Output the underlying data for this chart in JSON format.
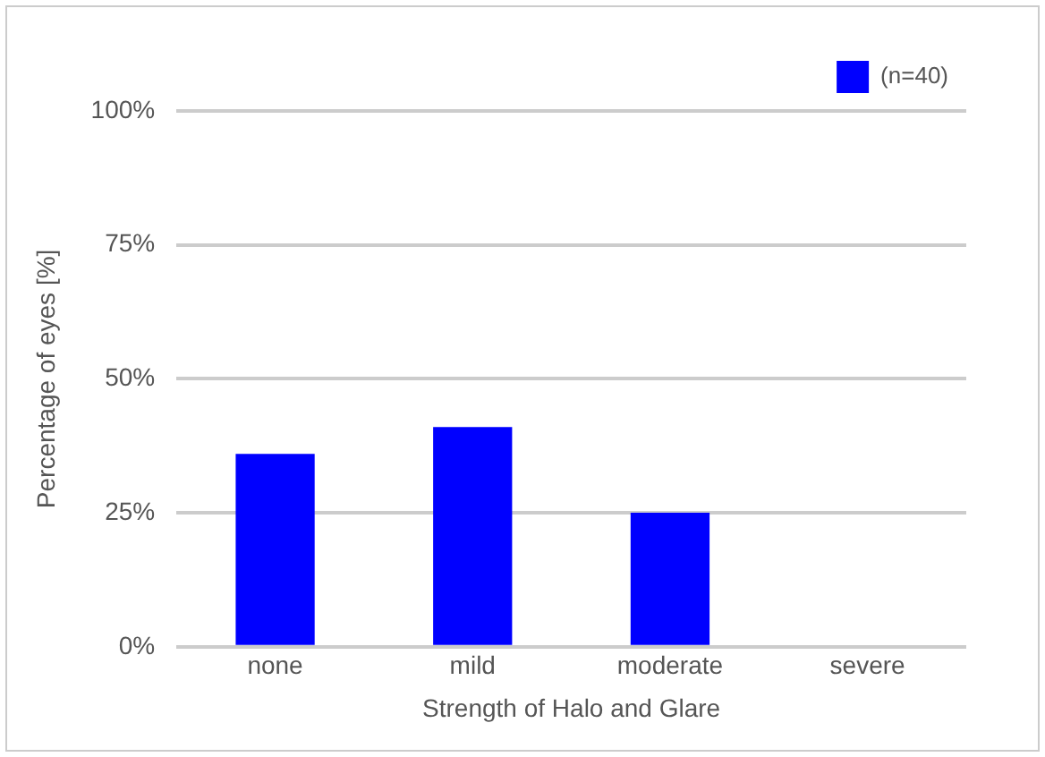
{
  "chart_data": {
    "type": "bar",
    "xlabel": "Strength of Halo and Glare",
    "ylabel": "Percentage of eyes [%]",
    "categories": [
      "none",
      "mild",
      "moderate",
      "severe"
    ],
    "series": [
      {
        "name": "(n=40)",
        "color": "#0000ff",
        "values": [
          36,
          41,
          25,
          0
        ]
      }
    ],
    "ylim": [
      0,
      100
    ],
    "yticks": [
      {
        "value": 0,
        "label": "0%"
      },
      {
        "value": 25,
        "label": "25%"
      },
      {
        "value": 50,
        "label": "50%"
      },
      {
        "value": 75,
        "label": "75%"
      },
      {
        "value": 100,
        "label": "100%"
      }
    ],
    "grid": "y",
    "legend": "top right"
  }
}
